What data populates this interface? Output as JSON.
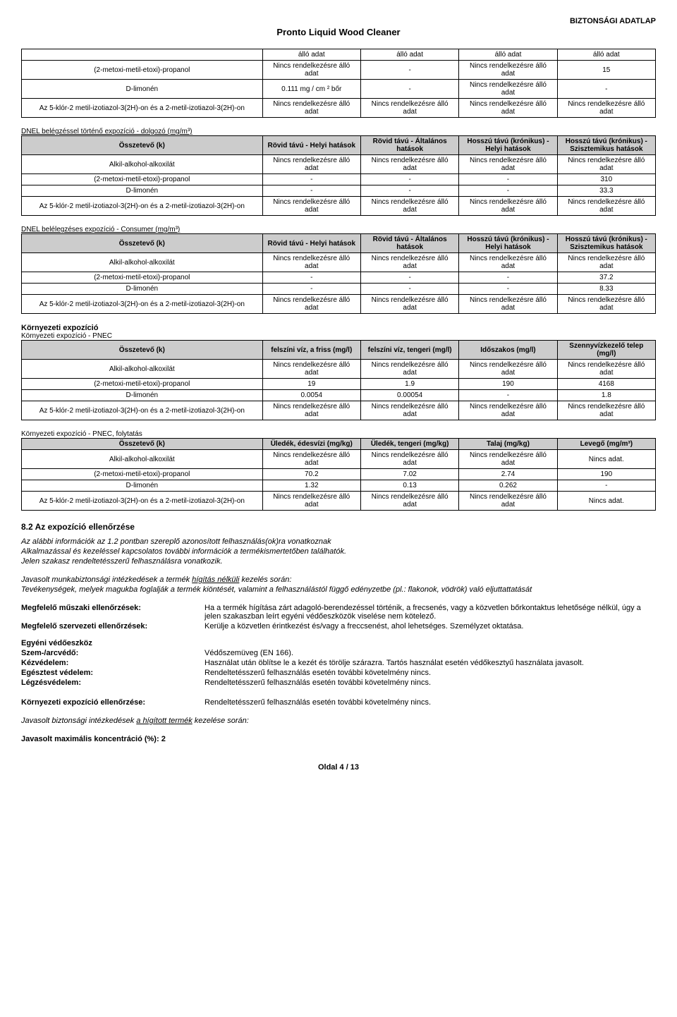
{
  "header": {
    "topRight": "BIZTONSÁGI ADATLAP",
    "title": "Pronto Liquid Wood Cleaner"
  },
  "noData": "Nincs rendelkezésre álló adat",
  "table1": {
    "rows": [
      {
        "name": "",
        "c1": "álló adat",
        "c2": "álló adat",
        "c3": "álló adat",
        "c4": "álló adat"
      },
      {
        "name": "(2-metoxi-metil-etoxi)-propanol",
        "c1": "Nincs rendelkezésre álló adat",
        "c2": "-",
        "c3": "Nincs rendelkezésre álló adat",
        "c4": "15"
      },
      {
        "name": "D-limonén",
        "c1": "0.111 mg / cm ²  bőr",
        "c2": "-",
        "c3": "Nincs rendelkezésre álló adat",
        "c4": "-"
      },
      {
        "name": "Az 5-klór-2 metil-izotiazol-3(2H)-on és a 2-metil-izotiazol-3(2H)-on",
        "c1": "Nincs rendelkezésre álló adat",
        "c2": "Nincs rendelkezésre álló adat",
        "c3": "Nincs rendelkezésre álló adat",
        "c4": "Nincs rendelkezésre álló adat"
      }
    ]
  },
  "table2": {
    "caption": "DNEL belégzéssel történő expozíció - dolgozó (mg/m³)",
    "headers": [
      "Összetevő (k)",
      "Rövid távú - Helyi hatások",
      "Rövid távú - Általános hatások",
      "Hosszú távú (krónikus) - Helyi hatások",
      "Hosszú távú (krónikus) - Szisztemikus hatások"
    ],
    "rows": [
      {
        "name": "Alkil-alkohol-alkoxilát",
        "c1": "Nincs rendelkezésre álló adat",
        "c2": "Nincs rendelkezésre álló adat",
        "c3": "Nincs rendelkezésre álló adat",
        "c4": "Nincs rendelkezésre álló adat"
      },
      {
        "name": "(2-metoxi-metil-etoxi)-propanol",
        "c1": "-",
        "c2": "-",
        "c3": "-",
        "c4": "310"
      },
      {
        "name": "D-limonén",
        "c1": "-",
        "c2": "-",
        "c3": "-",
        "c4": "33.3"
      },
      {
        "name": "Az 5-klór-2 metil-izotiazol-3(2H)-on és a 2-metil-izotiazol-3(2H)-on",
        "c1": "Nincs rendelkezésre álló adat",
        "c2": "Nincs rendelkezésre álló adat",
        "c3": "Nincs rendelkezésre álló adat",
        "c4": "Nincs rendelkezésre álló adat"
      }
    ]
  },
  "table3": {
    "caption": "DNEL belélegzéses expozíció - Consumer (mg/m³)",
    "headers": [
      "Összetevő (k)",
      "Rövid távú - Helyi hatások",
      "Rövid távú - Általános hatások",
      "Hosszú távú (krónikus) - Helyi hatások",
      "Hosszú távú (krónikus) - Szisztemikus hatások"
    ],
    "rows": [
      {
        "name": "Alkil-alkohol-alkoxilát",
        "c1": "Nincs rendelkezésre álló adat",
        "c2": "Nincs rendelkezésre álló adat",
        "c3": "Nincs rendelkezésre álló adat",
        "c4": "Nincs rendelkezésre álló adat"
      },
      {
        "name": "(2-metoxi-metil-etoxi)-propanol",
        "c1": "-",
        "c2": "-",
        "c3": "-",
        "c4": "37.2"
      },
      {
        "name": "D-limonén",
        "c1": "-",
        "c2": "-",
        "c3": "-",
        "c4": "8.33"
      },
      {
        "name": "Az 5-klór-2 metil-izotiazol-3(2H)-on és a 2-metil-izotiazol-3(2H)-on",
        "c1": "Nincs rendelkezésre álló adat",
        "c2": "Nincs rendelkezésre álló adat",
        "c3": "Nincs rendelkezésre álló adat",
        "c4": "Nincs rendelkezésre álló adat"
      }
    ]
  },
  "envTitle": "Környezeti expozíció",
  "table4": {
    "caption": "Környezeti expozíció - PNEC",
    "headers": [
      "Összetevő (k)",
      "felszíni víz, a friss (mg/l)",
      "felszíni víz, tengeri (mg/l)",
      "Időszakos (mg/l)",
      "Szennyvízkezelő telep (mg/l)"
    ],
    "rows": [
      {
        "name": "Alkil-alkohol-alkoxilát",
        "c1": "Nincs rendelkezésre álló adat",
        "c2": "Nincs rendelkezésre álló adat",
        "c3": "Nincs rendelkezésre álló adat",
        "c4": "Nincs rendelkezésre álló adat"
      },
      {
        "name": "(2-metoxi-metil-etoxi)-propanol",
        "c1": "19",
        "c2": "1.9",
        "c3": "190",
        "c4": "4168"
      },
      {
        "name": "D-limonén",
        "c1": "0.0054",
        "c2": "0.00054",
        "c3": "-",
        "c4": "1.8"
      },
      {
        "name": "Az 5-klór-2 metil-izotiazol-3(2H)-on és a 2-metil-izotiazol-3(2H)-on",
        "c1": "Nincs rendelkezésre álló adat",
        "c2": "Nincs rendelkezésre álló adat",
        "c3": "Nincs rendelkezésre álló adat",
        "c4": "Nincs rendelkezésre álló adat"
      }
    ]
  },
  "table5": {
    "caption": "Környezeti expozíció - PNEC, folytatás",
    "headers": [
      "Összetevő (k)",
      "Üledék, édesvízi (mg/kg)",
      "Üledék, tengeri (mg/kg)",
      "Talaj (mg/kg)",
      "Levegő (mg/m³)"
    ],
    "rows": [
      {
        "name": "Alkil-alkohol-alkoxilát",
        "c1": "Nincs rendelkezésre álló adat",
        "c2": "Nincs rendelkezésre álló adat",
        "c3": "Nincs rendelkezésre álló adat",
        "c4": "Nincs adat."
      },
      {
        "name": "(2-metoxi-metil-etoxi)-propanol",
        "c1": "70.2",
        "c2": "7.02",
        "c3": "2.74",
        "c4": "190"
      },
      {
        "name": "D-limonén",
        "c1": "1.32",
        "c2": "0.13",
        "c3": "0.262",
        "c4": "-"
      },
      {
        "name": "Az 5-klór-2 metil-izotiazol-3(2H)-on és a 2-metil-izotiazol-3(2H)-on",
        "c1": "Nincs rendelkezésre álló adat",
        "c2": "Nincs rendelkezésre álló adat",
        "c3": "Nincs rendelkezésre álló adat",
        "c4": "Nincs adat."
      }
    ]
  },
  "sec82": {
    "heading": "8.2 Az expozíció ellenőrzése",
    "para1": "Az alábbi információk az 1.2 pontban szereplő azonosított felhasználás(ok)ra vonatkoznak",
    "para2": "Alkalmazással és kezeléssel kapcsolatos további információk a termékismertetőben találhatók.",
    "para3": "Jelen szakasz rendeltetésszerű felhasználásra vonatkozik.",
    "para4a": "Javasolt munkabiztonsági intézkedések a termék ",
    "para4u": "hígítás nélküli",
    "para4b": " kezelés során:",
    "para5": "Tevékenységek, melyek magukba foglalják a termék kiöntését, valamint a felhasználástól függő edényzetbe (pl.: flakonok, vödrök) való eljuttattatását",
    "kv": [
      {
        "k": "Megfelelő műszaki ellenőrzések:",
        "v": "Ha a termék hígítása zárt adagoló-berendezéssel történik, a frecsenés, vagy a közvetlen bőrkontaktus lehetősége nélkül, úgy a jelen szakaszban leírt egyéni védőeszközök viselése nem kötelező."
      },
      {
        "k": "Megfelelő szervezeti ellenőrzések:",
        "v": "Kerülje a közvetlen érintkezést és/vagy a freccsenést, ahol lehetséges. Személyzet oktatása."
      }
    ],
    "ppeHead": "Egyéni védőeszköz",
    "ppe": [
      {
        "k": "Szem-/arcvédő:",
        "v": "Védőszemüveg (EN 166)."
      },
      {
        "k": "Kézvédelem:",
        "v": "Használat után öblítse le a kezét és törölje szárazra. Tartós használat esetén védőkesztyű használata javasolt."
      },
      {
        "k": "Egésztest védelem:",
        "v": "Rendeltetésszerű felhasználás esetén további követelmény nincs."
      },
      {
        "k": "Légzésvédelem:",
        "v": "Rendeltetésszerű felhasználás esetén további követelmény nincs."
      }
    ],
    "envControl": {
      "k": "Környezeti expozíció ellenőrzése:",
      "v": "Rendeltetésszerű felhasználás esetén további követelmény nincs."
    },
    "dilutedA": "Javasolt biztonsági intézkedések ",
    "dilutedU": "a hígított termék",
    "dilutedB": " kezelése során:",
    "maxConc": "Javasolt maximális koncentráció (%):  2"
  },
  "footer": "Oldal  4 / 13"
}
